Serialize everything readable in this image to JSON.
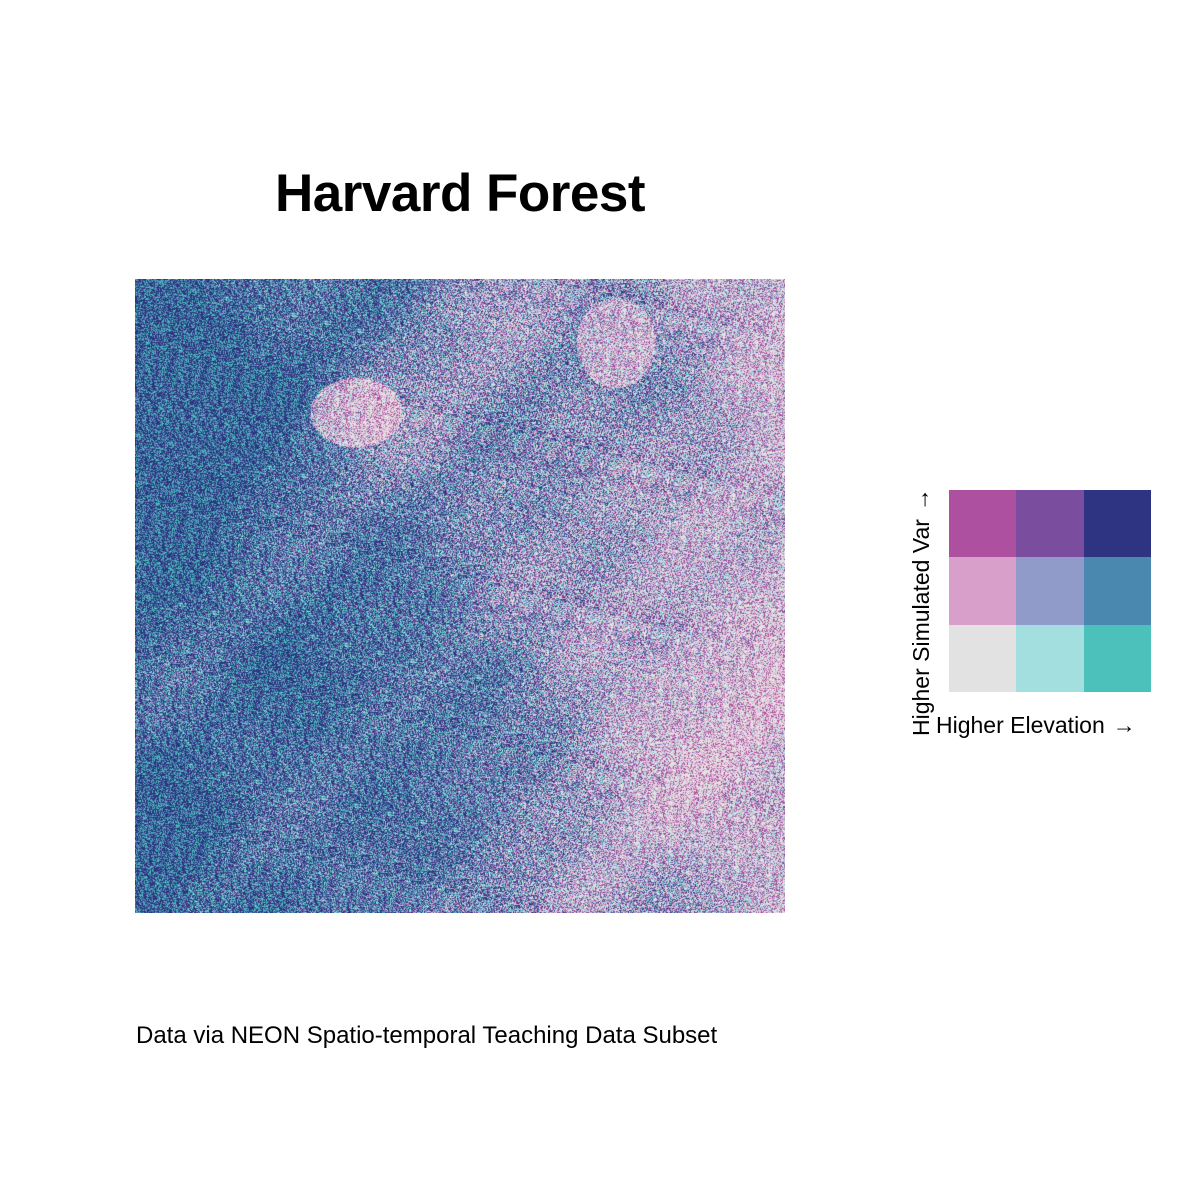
{
  "title": "Harvard Forest",
  "caption": "Data via NEON Spatio-temporal Teaching Data Subset",
  "legend": {
    "x_label": "Higher Elevation",
    "y_label": "Higher Simulated Var",
    "arrow": "→",
    "palette": [
      [
        "#AE50A0",
        "#7A4D9E",
        "#2E3481"
      ],
      [
        "#D89FCB",
        "#919BC9",
        "#4A88B0"
      ],
      [
        "#E2E2E2",
        "#A2DFDE",
        "#4CC1BC"
      ]
    ]
  },
  "map": {
    "description_colors": {
      "low_low": "#E2E2E2",
      "high_high": "#2E3481"
    }
  }
}
